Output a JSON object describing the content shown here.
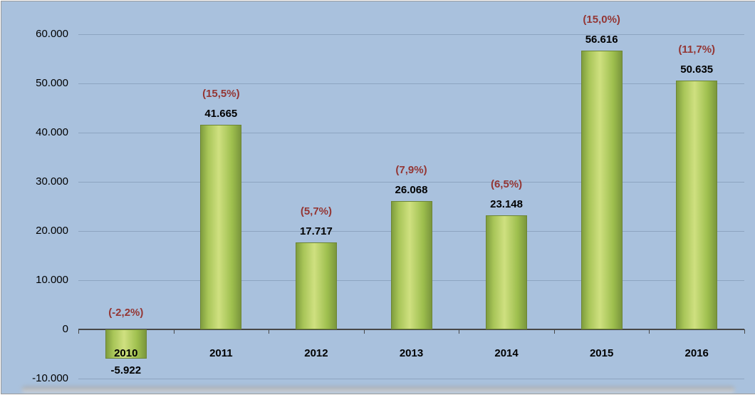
{
  "chart_data": {
    "type": "bar",
    "title": "",
    "xlabel": "",
    "ylabel": "",
    "categories": [
      "2010",
      "2011",
      "2012",
      "2013",
      "2014",
      "2015",
      "2016"
    ],
    "values": [
      -5922,
      41665,
      17717,
      26068,
      23148,
      56616,
      50635
    ],
    "value_labels": [
      "-5.922",
      "41.665",
      "17.717",
      "26.068",
      "23.148",
      "56.616",
      "50.635"
    ],
    "pct_labels": [
      "(-2,2%)",
      "(15,5%)",
      "(5,7%)",
      "(7,9%)",
      "(6,5%)",
      "(15,0%)",
      "(11,7%)"
    ],
    "ylim": [
      -10000,
      60000
    ],
    "ytick_step": 10000,
    "ytick_labels": [
      "60.000",
      "50.000",
      "40.000",
      "30.000",
      "20.000",
      "10.000",
      "0",
      "-10.000"
    ],
    "grid": true,
    "legend": "none",
    "colors": {
      "background": "#a9c1dd",
      "bar_fill": "#9bbb59",
      "bar_border": "#6d8534",
      "value_label": "#000000",
      "pct_label": "#943634",
      "gridline": "#8da4c0",
      "axis_line": "#474747"
    }
  }
}
